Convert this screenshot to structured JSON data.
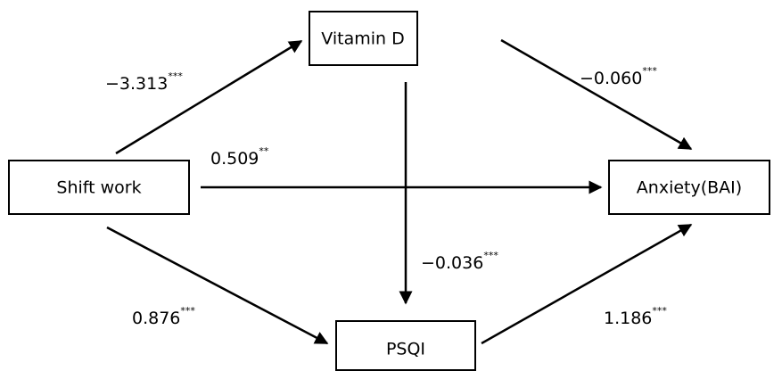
{
  "nodes": [
    {
      "label": "Vitamin D"
    },
    {
      "label": "Shift work"
    },
    {
      "label": "Anxiety(BAI)"
    },
    {
      "label": "PSQI"
    }
  ],
  "edges": [
    {
      "label": "−3.313",
      "sig": "***"
    },
    {
      "label": "−0.060",
      "sig": "***"
    },
    {
      "label": "0.509",
      "sig": "**"
    },
    {
      "label": "−0.036",
      "sig": "***"
    },
    {
      "label": "0.876",
      "sig": "***"
    },
    {
      "label": "1.186",
      "sig": "***"
    }
  ]
}
